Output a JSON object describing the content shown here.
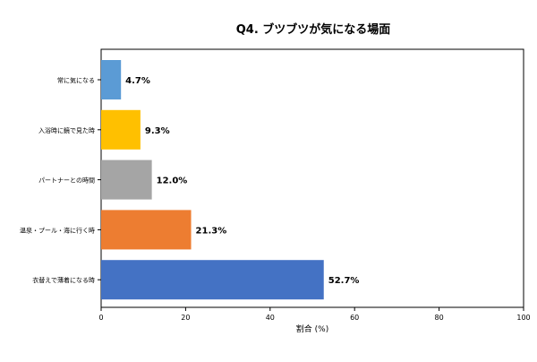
{
  "chart_data": {
    "type": "bar",
    "orientation": "horizontal",
    "title": "Q4. ブツブツが気になる場面",
    "xlabel": "割合 (%)",
    "ylabel": "",
    "xlim": [
      0,
      100
    ],
    "xticks": [
      0,
      20,
      40,
      60,
      80,
      100
    ],
    "grid": false,
    "legend": "none",
    "categories": [
      "常に気になる",
      "入浴時に鏡で見た時",
      "パートナーとの時間",
      "温泉・プール・海に行く時",
      "衣替えで薄着になる時"
    ],
    "values": [
      4.7,
      9.3,
      12.0,
      21.3,
      52.7
    ],
    "value_labels": [
      "4.7%",
      "9.3%",
      "12.0%",
      "21.3%",
      "52.7%"
    ],
    "colors": [
      "#5b9bd5",
      "#ffc000",
      "#a5a5a5",
      "#ed7d31",
      "#4472c4"
    ]
  }
}
